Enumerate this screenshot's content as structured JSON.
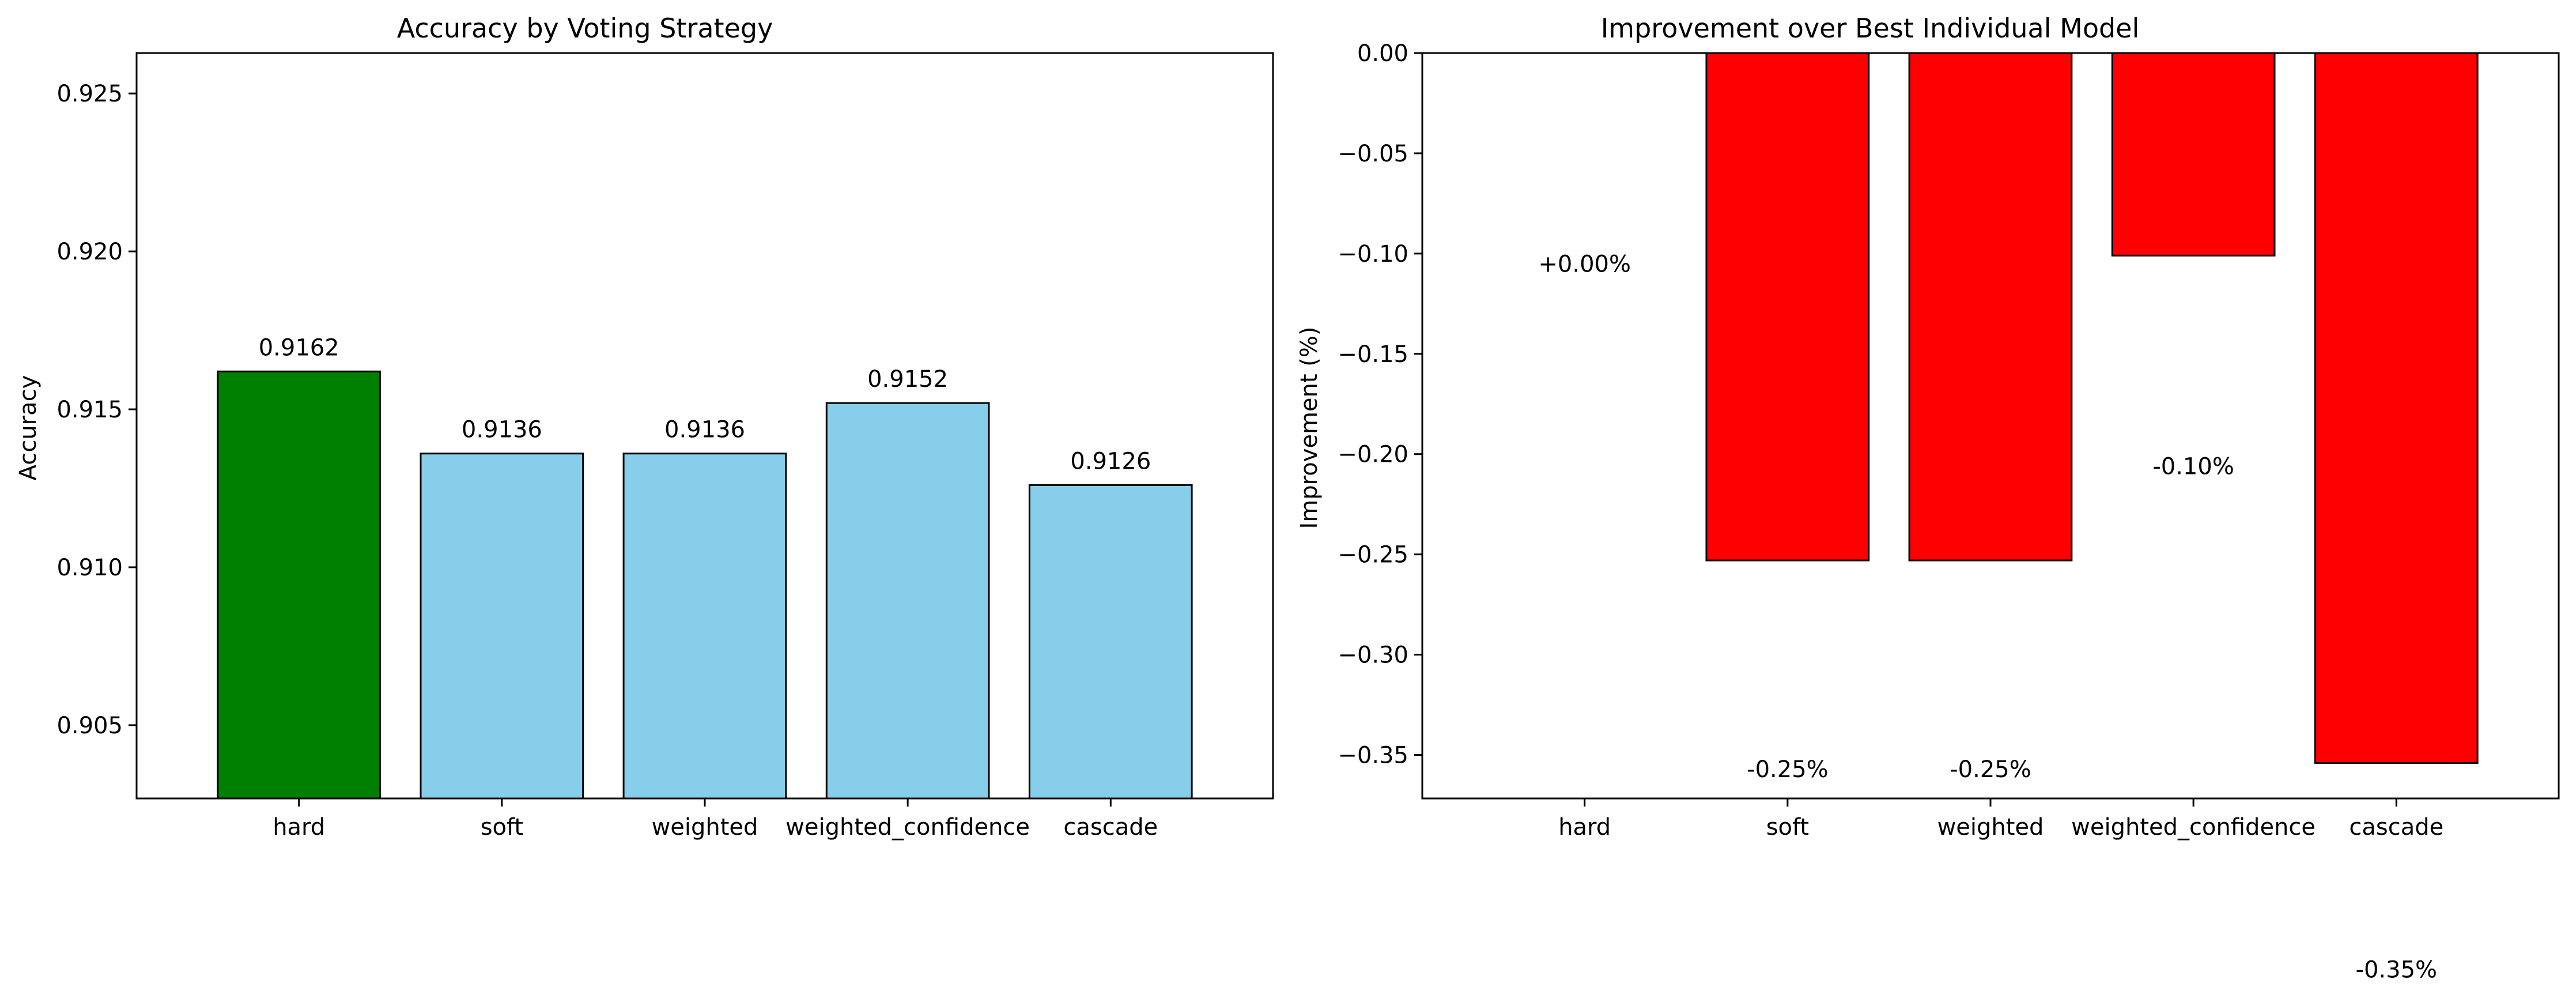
{
  "chart_data": [
    {
      "type": "bar",
      "title": "Accuracy by Voting Strategy",
      "xlabel": "",
      "ylabel": "Accuracy",
      "categories": [
        "hard",
        "soft",
        "weighted",
        "weighted_confidence",
        "cascade"
      ],
      "values": [
        0.9162,
        0.9136,
        0.9136,
        0.9152,
        0.9126
      ],
      "value_labels": [
        "0.9162",
        "0.9136",
        "0.9136",
        "0.9152",
        "0.9126"
      ],
      "bar_colors": [
        "#008000",
        "#87CEEB",
        "#87CEEB",
        "#87CEEB",
        "#87CEEB"
      ],
      "ylim": [
        0.90268,
        0.92628
      ],
      "yticks": [
        0.905,
        0.91,
        0.915,
        0.92,
        0.925
      ],
      "ytick_labels": [
        "0.905",
        "0.910",
        "0.915",
        "0.920",
        "0.925"
      ],
      "grid": false,
      "legend": "none"
    },
    {
      "type": "bar",
      "title": "Improvement over Best Individual Model",
      "xlabel": "",
      "ylabel": "Improvement (%)",
      "categories": [
        "hard",
        "soft",
        "weighted",
        "weighted_confidence",
        "cascade"
      ],
      "values": [
        0.0,
        -0.253,
        -0.253,
        -0.101,
        -0.354
      ],
      "value_labels": [
        "+0.00%",
        "-0.25%",
        "-0.25%",
        "-0.10%",
        "-0.35%"
      ],
      "label_y": [
        -0.105,
        -0.357,
        -0.357,
        -0.206,
        -0.457
      ],
      "bar_colors": [
        "#FF0000",
        "#FF0000",
        "#FF0000",
        "#FF0000",
        "#FF0000"
      ],
      "ylim": [
        -0.3717,
        0.0
      ],
      "yticks": [
        0.0,
        -0.05,
        -0.1,
        -0.15,
        -0.2,
        -0.25,
        -0.3,
        -0.35
      ],
      "ytick_labels": [
        "0.00",
        "−0.05",
        "−0.10",
        "−0.15",
        "−0.20",
        "−0.25",
        "−0.30",
        "−0.35"
      ],
      "grid": false,
      "legend": "none"
    }
  ]
}
